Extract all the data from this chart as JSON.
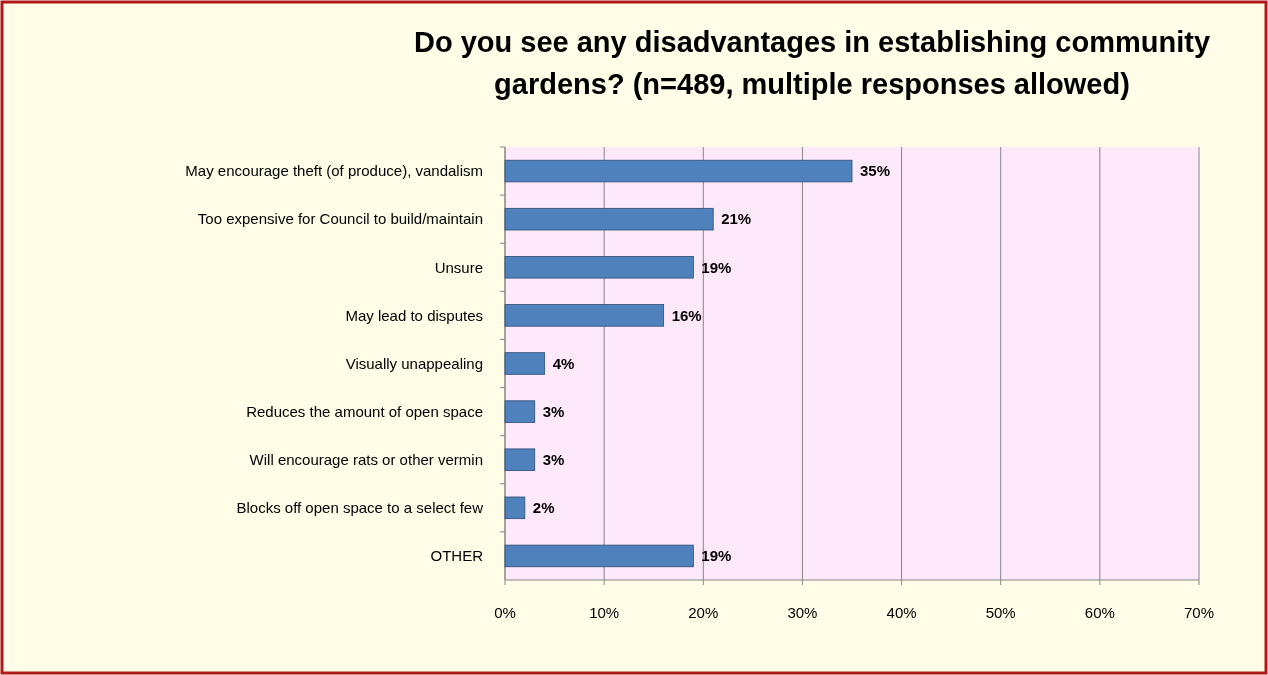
{
  "chart_data": {
    "type": "bar",
    "orientation": "horizontal",
    "title": "Do you see any disadvantages in establishing community gardens? (n=489, multiple responses allowed)",
    "categories": [
      "May encourage theft (of produce), vandalism",
      "Too expensive for Council to build/maintain",
      "Unsure",
      "May lead to disputes",
      "Visually unappealing",
      "Reduces the amount of open space",
      "Will encourage rats or other vermin",
      "Blocks off open space to a select few",
      "OTHER"
    ],
    "values": [
      35,
      21,
      19,
      16,
      4,
      3,
      3,
      2,
      19
    ],
    "value_labels": [
      "35%",
      "21%",
      "19%",
      "16%",
      "4%",
      "3%",
      "3%",
      "2%",
      "19%"
    ],
    "color": "#4f81bd",
    "xlim": [
      0,
      70
    ],
    "xticks": [
      {
        "value": 0,
        "label": "0%"
      },
      {
        "value": 10,
        "label": "10%"
      },
      {
        "value": 20,
        "label": "20%"
      },
      {
        "value": 30,
        "label": "30%"
      },
      {
        "value": 40,
        "label": "40%"
      },
      {
        "value": 50,
        "label": "50%"
      },
      {
        "value": 60,
        "label": "60%"
      },
      {
        "value": 70,
        "label": "70%"
      }
    ],
    "grid": "x"
  }
}
